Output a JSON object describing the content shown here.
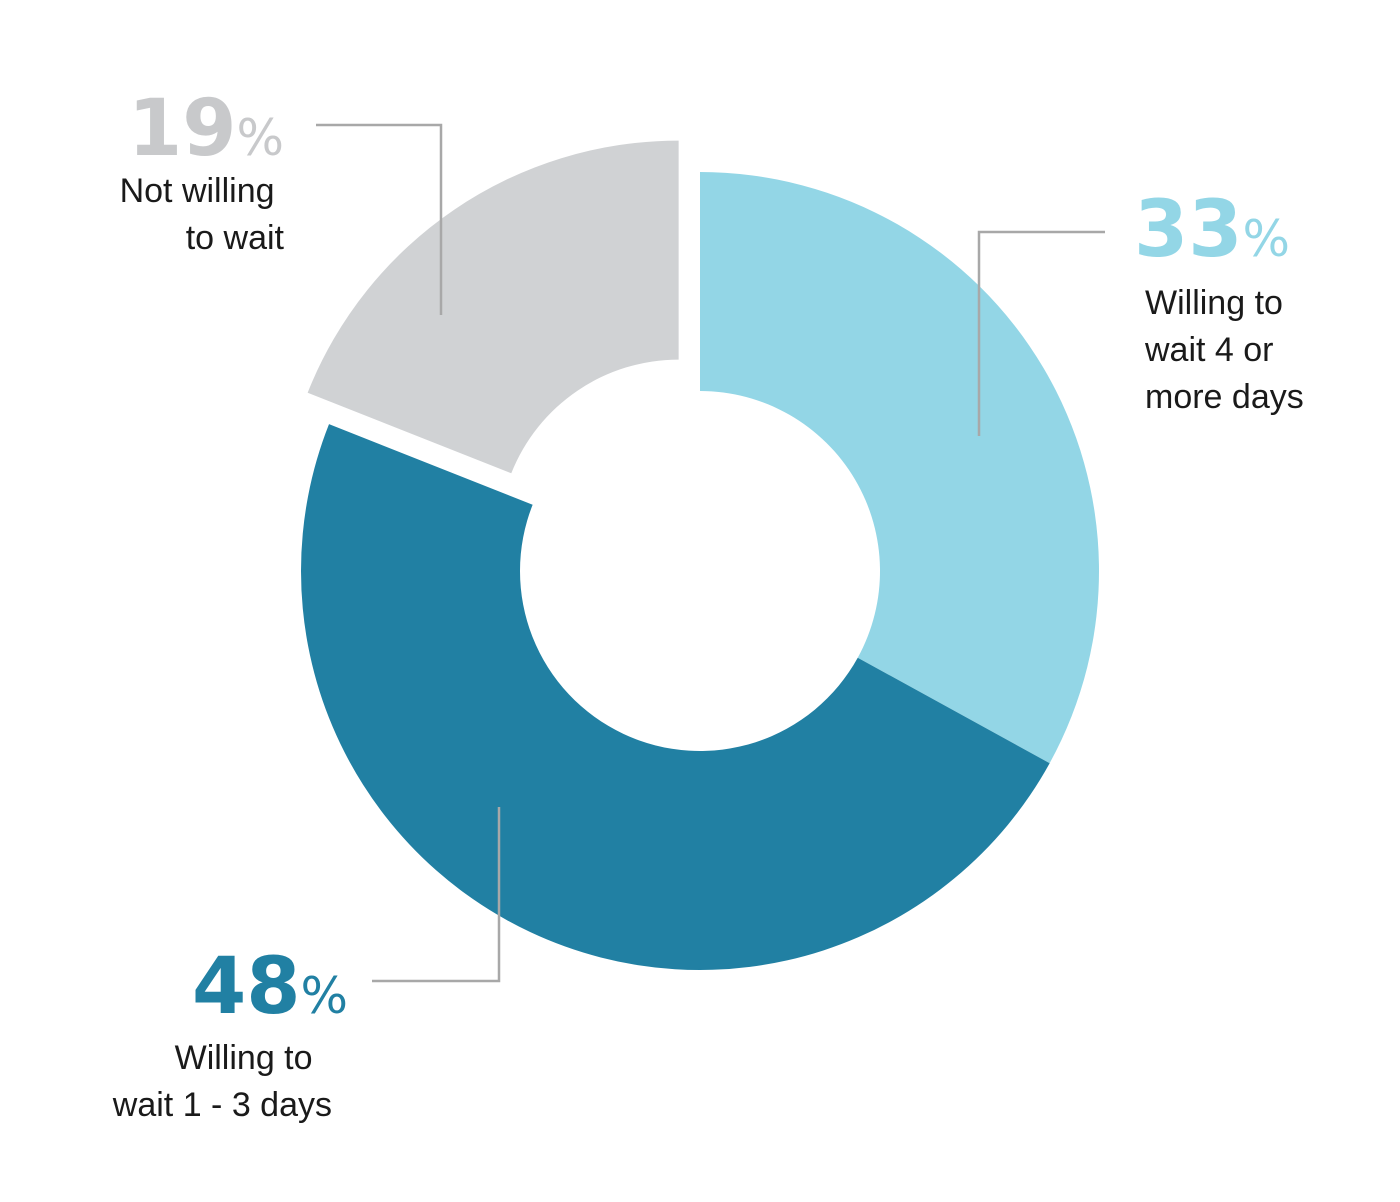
{
  "chart_data": {
    "type": "pie",
    "variant": "donut",
    "title": "",
    "slices": [
      {
        "value": 33,
        "value_label": "33",
        "label_lines": [
          "Willing to",
          "wait 4 or",
          "more days"
        ],
        "color": "#93d6e6",
        "label_color": "#93d6e6",
        "exploded": false
      },
      {
        "value": 48,
        "value_label": "48",
        "label_lines": [
          "Willing to",
          "wait 1 - 3 days"
        ],
        "color": "#2180a3",
        "label_color": "#2180a3",
        "exploded": false
      },
      {
        "value": 19,
        "value_label": "19",
        "label_lines": [
          "Not willing",
          "to wait"
        ],
        "color": "#d0d2d4",
        "label_color": "#c8c9cb",
        "exploded": true
      }
    ],
    "percent_symbol": "%",
    "start_angle": "12 o'clock",
    "direction": "clockwise",
    "leader_line_color": "#a8a8a8",
    "legend": "none"
  }
}
